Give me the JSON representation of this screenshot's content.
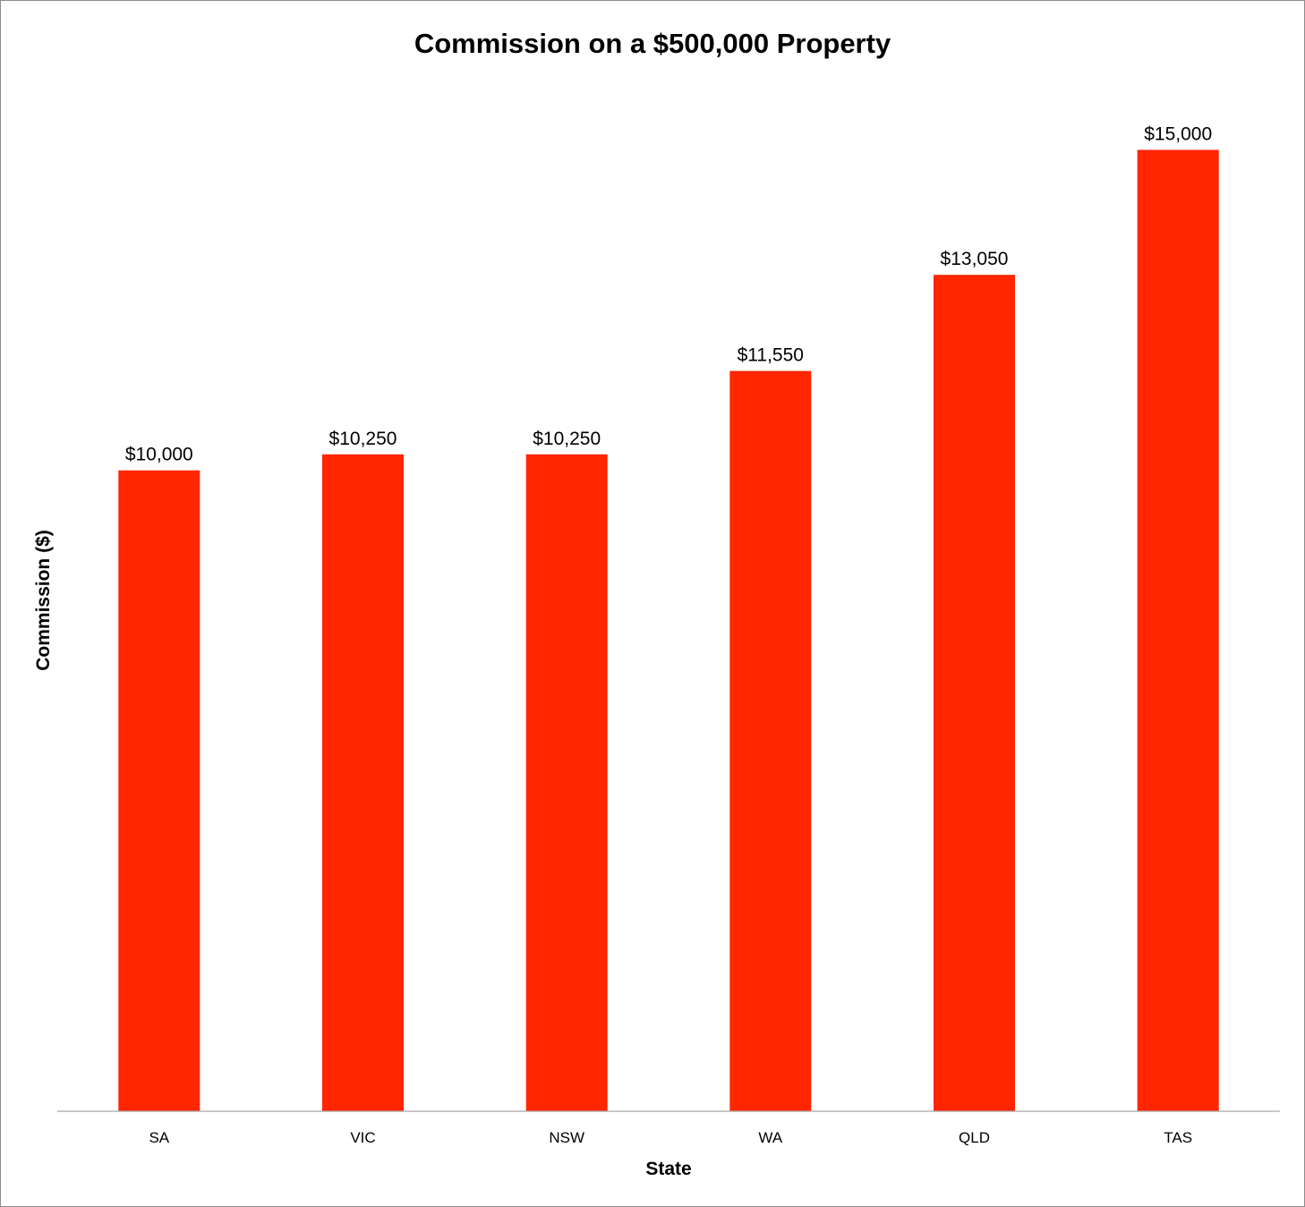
{
  "chart_data": {
    "type": "bar",
    "title": "Commission on a $500,000 Property",
    "xlabel": "State",
    "ylabel": "Commission ($)",
    "categories": [
      "SA",
      "VIC",
      "NSW",
      "WA",
      "QLD",
      "TAS"
    ],
    "values": [
      10000,
      10250,
      10250,
      11550,
      13050,
      15000
    ],
    "data_labels": [
      "$10,000",
      "$10,250",
      "$10,250",
      "$11,550",
      "$13,050",
      "$15,000"
    ],
    "ylim": [
      0,
      16000
    ],
    "grid": false,
    "legend": "none",
    "bar_color": "#ff2600"
  }
}
